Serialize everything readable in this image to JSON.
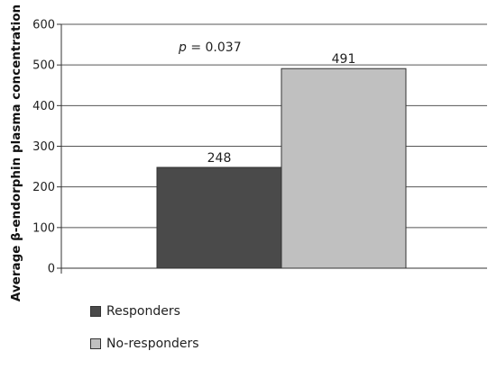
{
  "chart_data": {
    "type": "bar",
    "categories": [
      "Responders",
      "No-responders"
    ],
    "values": [
      248,
      491
    ],
    "colors": [
      "#4a4a4a",
      "#c0c0c0"
    ],
    "data_labels": [
      "248",
      "491"
    ],
    "ylabel": "Average β-endorphin plasma concentration",
    "ylim": [
      0,
      600
    ],
    "yticks": [
      0,
      100,
      200,
      300,
      400,
      500,
      600
    ],
    "grid": true,
    "legend": "bottom-left",
    "annotation": {
      "prefix": "p",
      "text": " = 0.037"
    }
  }
}
